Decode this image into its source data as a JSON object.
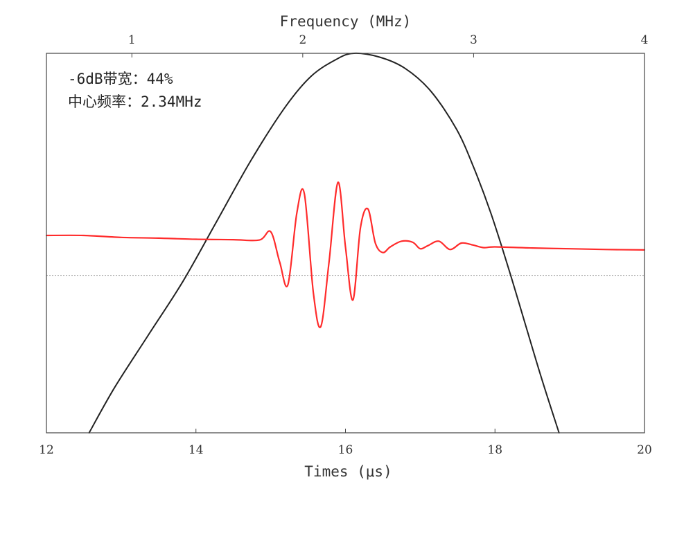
{
  "chart_data": {
    "type": "line",
    "title": "",
    "xlabel": "Times (μs)",
    "xlim": [
      12,
      20
    ],
    "xticks": [
      12,
      14,
      16,
      18,
      20
    ],
    "x2label": "Frequency (MHz)",
    "x2lim": [
      0.5,
      4
    ],
    "x2ticks": [
      1,
      2,
      3,
      4
    ],
    "ylabel": "",
    "yticks": [],
    "grid": false,
    "baseline_style": "dotted",
    "annotations": [
      "-6dB带宽：44%",
      "中心频率：2.34MHz"
    ],
    "series": [
      {
        "axis": "top",
        "color": "#222222",
        "x": [
          0.75,
          0.9,
          1.1,
          1.3,
          1.5,
          1.7,
          1.9,
          2.05,
          2.2,
          2.3,
          2.45,
          2.6,
          2.75,
          2.9,
          3.0,
          3.1,
          3.2,
          3.3,
          3.4,
          3.5
        ],
        "y": [
          0.0,
          0.12,
          0.26,
          0.4,
          0.56,
          0.72,
          0.86,
          0.94,
          0.985,
          1.0,
          0.99,
          0.96,
          0.9,
          0.8,
          0.7,
          0.58,
          0.44,
          0.29,
          0.14,
          0.0
        ]
      },
      {
        "axis": "bottom",
        "color": "#ff2b2b",
        "x": [
          12.0,
          12.5,
          13.0,
          13.5,
          14.0,
          14.5,
          14.85,
          15.0,
          15.12,
          15.23,
          15.35,
          15.45,
          15.57,
          15.67,
          15.78,
          15.9,
          16.0,
          16.1,
          16.2,
          16.3,
          16.4,
          16.5,
          16.6,
          16.75,
          16.9,
          17.0,
          17.1,
          17.25,
          17.4,
          17.55,
          17.7,
          17.85,
          18.0,
          18.5,
          19.0,
          19.5,
          20.0
        ],
        "y": [
          0.52,
          0.52,
          0.515,
          0.513,
          0.51,
          0.509,
          0.508,
          0.53,
          0.45,
          0.39,
          0.58,
          0.63,
          0.37,
          0.28,
          0.45,
          0.66,
          0.49,
          0.35,
          0.54,
          0.59,
          0.5,
          0.475,
          0.49,
          0.505,
          0.502,
          0.485,
          0.493,
          0.505,
          0.483,
          0.5,
          0.495,
          0.488,
          0.49,
          0.487,
          0.485,
          0.483,
          0.482
        ]
      }
    ]
  }
}
